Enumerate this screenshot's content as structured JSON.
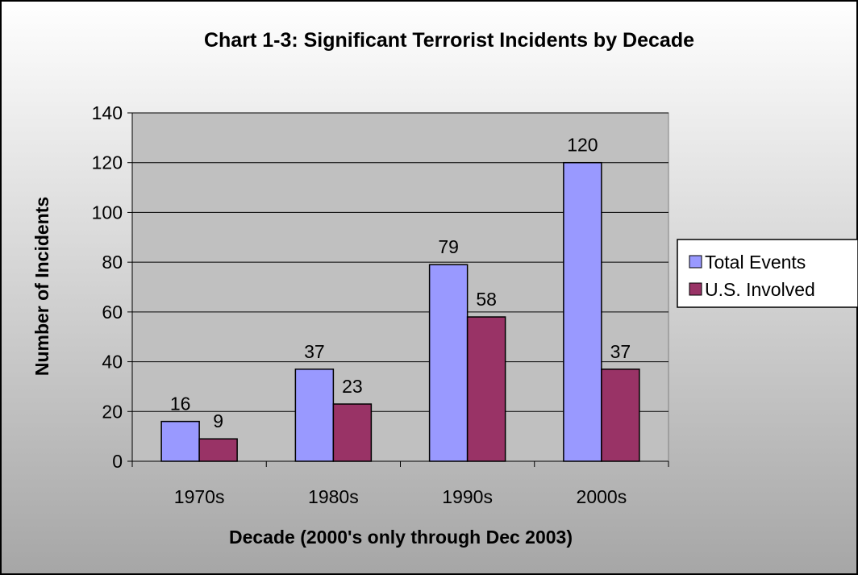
{
  "chart_data": {
    "type": "bar",
    "title": "Chart 1-3: Significant Terrorist Incidents by Decade",
    "xlabel": "Decade (2000's only through Dec 2003)",
    "ylabel": "Number of Incidents",
    "categories": [
      "1970s",
      "1980s",
      "1990s",
      "2000s"
    ],
    "series": [
      {
        "name": "Total Events",
        "values": [
          16,
          37,
          79,
          120
        ],
        "color": "#9999FF"
      },
      {
        "name": "U.S. Involved",
        "values": [
          9,
          23,
          58,
          37
        ],
        "color": "#993366"
      }
    ],
    "ylim": [
      0,
      140
    ],
    "yticks": [
      0,
      20,
      40,
      60,
      80,
      100,
      120,
      140
    ],
    "grid": true,
    "legend_position": "right",
    "data_labels": true,
    "background": "gradient white to gray",
    "colors": {
      "plot_area": "#C0C0C0",
      "bar_outline": "#000000",
      "gridline": "#000000"
    }
  }
}
